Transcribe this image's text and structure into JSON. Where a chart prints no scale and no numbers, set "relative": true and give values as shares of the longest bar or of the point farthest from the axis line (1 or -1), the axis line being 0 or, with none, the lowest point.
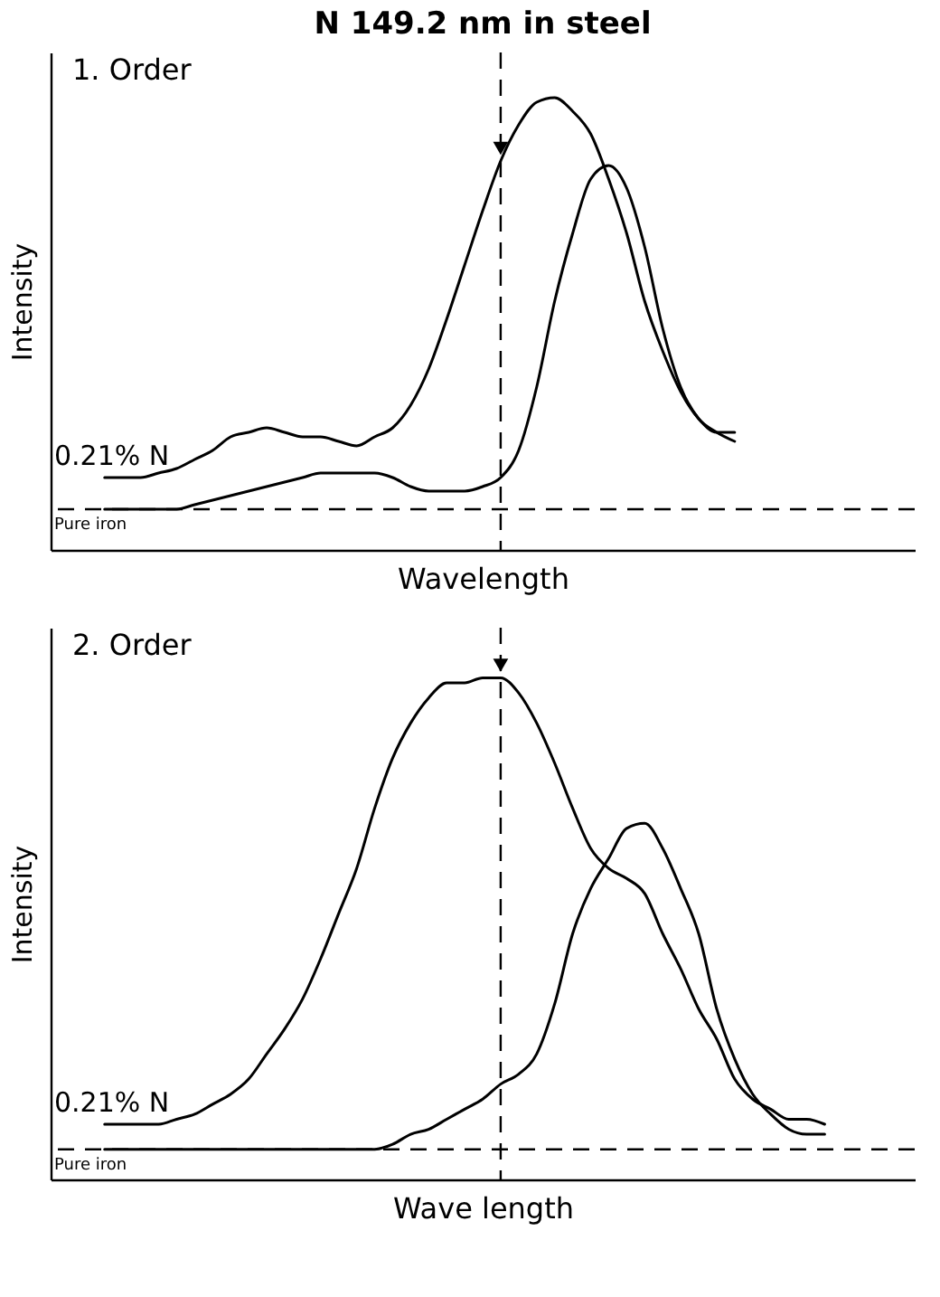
{
  "chart_data": [
    {
      "type": "line",
      "title": "N 149.2 nm in steel",
      "subtitle": "1. Order",
      "xlabel": "Wavelength",
      "ylabel": "Intensity",
      "relative": true,
      "categories": [
        null,
        null,
        null,
        null,
        null,
        null,
        null,
        null,
        null,
        null,
        null,
        null,
        null,
        null,
        null,
        null,
        null,
        null,
        null,
        null,
        null,
        null,
        null,
        null,
        null,
        null,
        null,
        null,
        null,
        null,
        null,
        null,
        null,
        null,
        null,
        null,
        null,
        null,
        null,
        null,
        null,
        null,
        null,
        null,
        null,
        null,
        null,
        null,
        null
      ],
      "series": [
        {
          "name": "0.21% N",
          "color": "#000000",
          "values": [
            null,
            null,
            null,
            0.16,
            0.16,
            0.16,
            0.17,
            0.18,
            0.2,
            0.22,
            0.25,
            0.26,
            0.27,
            0.26,
            0.25,
            0.25,
            0.24,
            0.23,
            0.25,
            0.27,
            0.32,
            0.4,
            0.51,
            0.63,
            0.75,
            0.86,
            0.94,
            0.99,
            1.0,
            0.97,
            0.92,
            0.82,
            0.7,
            0.55,
            0.44,
            0.35,
            0.29,
            0.26,
            0.26,
            null,
            null,
            null,
            null,
            null,
            null,
            null,
            null,
            null,
            null
          ]
        },
        {
          "name": "Pure iron",
          "color": "#000000",
          "values": [
            null,
            null,
            null,
            0.09,
            0.09,
            0.09,
            0.09,
            0.09,
            0.1,
            0.11,
            0.12,
            0.13,
            0.14,
            0.15,
            0.16,
            0.17,
            0.17,
            0.17,
            0.17,
            0.16,
            0.14,
            0.13,
            0.13,
            0.13,
            0.14,
            0.16,
            0.22,
            0.36,
            0.55,
            0.7,
            0.82,
            0.85,
            0.8,
            0.67,
            0.49,
            0.36,
            0.29,
            0.26,
            0.24,
            null,
            null,
            null,
            null,
            null,
            null,
            null,
            null,
            null,
            null
          ]
        }
      ],
      "ref_lines": [
        {
          "axis": "y",
          "value": 0.09,
          "label": null,
          "line_style": "dashed",
          "color": "#000000"
        }
      ],
      "grid": false,
      "line_style": "solid"
    },
    {
      "type": "line",
      "subtitle": "2. Order",
      "xlabel": "Wave length",
      "ylabel": "Intensity",
      "relative": true,
      "categories": [
        null,
        null,
        null,
        null,
        null,
        null,
        null,
        null,
        null,
        null,
        null,
        null,
        null,
        null,
        null,
        null,
        null,
        null,
        null,
        null,
        null,
        null,
        null,
        null,
        null,
        null,
        null,
        null,
        null,
        null,
        null,
        null,
        null,
        null,
        null,
        null,
        null,
        null,
        null,
        null,
        null,
        null,
        null,
        null,
        null,
        null,
        null,
        null,
        null
      ],
      "series": [
        {
          "name": "0.21% N",
          "color": "#000000",
          "values": [
            null,
            null,
            null,
            0.11,
            0.11,
            0.11,
            0.11,
            0.12,
            0.13,
            0.15,
            0.17,
            0.2,
            0.25,
            0.3,
            0.36,
            0.44,
            0.53,
            0.62,
            0.74,
            0.84,
            0.91,
            0.96,
            0.99,
            0.99,
            1.0,
            1.0,
            0.97,
            0.91,
            0.83,
            0.74,
            0.66,
            0.62,
            0.6,
            0.57,
            0.49,
            0.42,
            0.34,
            0.28,
            0.2,
            0.16,
            0.14,
            0.12,
            0.12,
            0.11,
            null,
            null,
            null,
            null,
            null
          ]
        },
        {
          "name": "Pure iron",
          "color": "#000000",
          "values": [
            null,
            null,
            null,
            0.06,
            0.06,
            0.06,
            0.06,
            0.06,
            0.06,
            0.06,
            0.06,
            0.06,
            0.06,
            0.06,
            0.06,
            0.06,
            0.06,
            0.06,
            0.06,
            0.07,
            0.09,
            0.1,
            0.12,
            0.14,
            0.16,
            0.19,
            0.21,
            0.25,
            0.35,
            0.49,
            0.58,
            0.64,
            0.7,
            0.71,
            0.66,
            0.58,
            0.49,
            0.34,
            0.24,
            0.17,
            0.13,
            0.1,
            0.09,
            0.09,
            null,
            null,
            null,
            null,
            null
          ]
        }
      ],
      "ref_lines": [
        {
          "axis": "y",
          "value": 0.06,
          "label": null,
          "line_style": "dashed",
          "color": "#000000"
        }
      ],
      "grid": false,
      "line_style": "solid"
    }
  ]
}
